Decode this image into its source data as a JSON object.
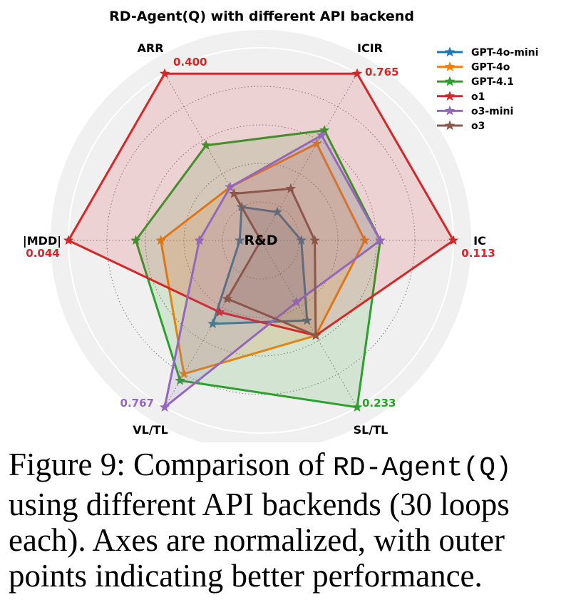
{
  "chart_data": {
    "type": "radar",
    "title": "RD-Agent(Q) with different API backend",
    "center_label": "R&D",
    "axes": [
      {
        "name": "IC",
        "max_label": "0.113",
        "max_color": "#d62728"
      },
      {
        "name": "ICIR",
        "max_label": "0.765",
        "max_color": "#d62728"
      },
      {
        "name": "ARR",
        "max_label": "0.400",
        "max_color": "#d62728"
      },
      {
        "name": "|MDD|",
        "max_label": "0.044",
        "max_color": "#d62728"
      },
      {
        "name": "VL/TL",
        "max_label": "0.767",
        "max_color": "#9467bd"
      },
      {
        "name": "SL/TL",
        "max_label": "0.233",
        "max_color": "#2ca02c"
      }
    ],
    "range": [
      0,
      1
    ],
    "grid": true,
    "legend_position": "top-right",
    "series": [
      {
        "name": "GPT-4o-mini",
        "color": "#1f77b4",
        "values": [
          0.21,
          0.17,
          0.2,
          0.11,
          0.5,
          0.48
        ]
      },
      {
        "name": "GPT-4o",
        "color": "#ff7f0e",
        "values": [
          0.54,
          0.58,
          0.32,
          0.52,
          0.8,
          0.57
        ]
      },
      {
        "name": "GPT-4.1",
        "color": "#2ca02c",
        "values": [
          0.62,
          0.66,
          0.57,
          0.65,
          0.84,
          1.0
        ]
      },
      {
        "name": "o1",
        "color": "#d62728",
        "values": [
          1.0,
          1.0,
          1.0,
          1.0,
          0.43,
          0.57
        ]
      },
      {
        "name": "o3-mini",
        "color": "#9467bd",
        "values": [
          0.62,
          0.63,
          0.32,
          0.32,
          1.0,
          0.37
        ]
      },
      {
        "name": "o3",
        "color": "#8c564b",
        "values": [
          0.28,
          0.31,
          0.28,
          0.0,
          0.35,
          0.57
        ]
      }
    ]
  },
  "caption": {
    "lead": "Figure 9: Comparison of ",
    "code": "RD-Agent(Q)",
    "rest": " using different API backends (30 loops each). Axes are normalized, with outer points indicating better performance."
  }
}
